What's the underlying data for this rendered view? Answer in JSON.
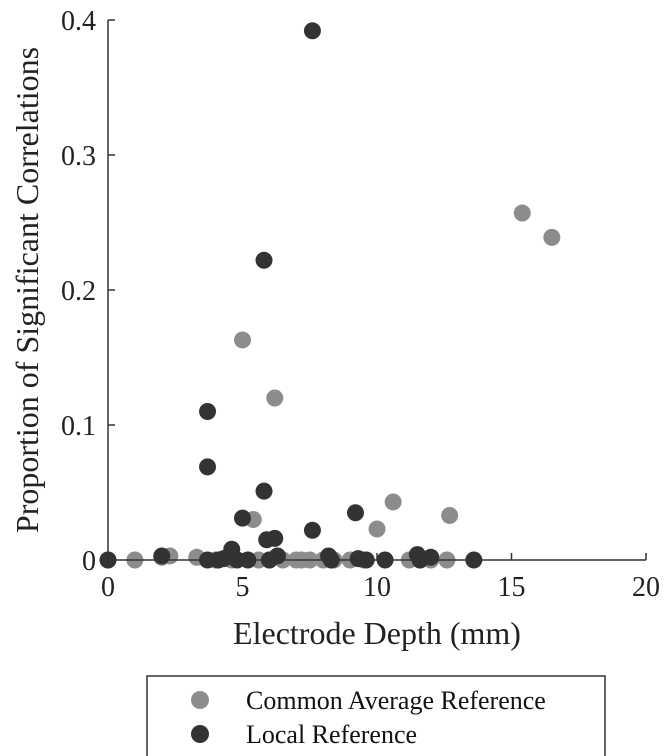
{
  "chart_data": {
    "type": "scatter",
    "xlabel": "Electrode Depth (mm)",
    "ylabel": "Proportion of Significant Correlations",
    "xlim": [
      0,
      20
    ],
    "ylim": [
      0,
      0.4
    ],
    "xticks": [
      0,
      5,
      10,
      15,
      20
    ],
    "xtick_labels": [
      "0",
      "5",
      "10",
      "15",
      "20"
    ],
    "yticks": [
      0,
      0.1,
      0.2,
      0.3,
      0.4
    ],
    "ytick_labels": [
      "0",
      "0.1",
      "0.2",
      "0.3",
      "0.4"
    ],
    "grid": false,
    "legend_position": "bottom-center",
    "series": [
      {
        "name": "Common Average Reference",
        "color": "#8c8c8c",
        "points": [
          [
            0,
            0
          ],
          [
            1,
            0
          ],
          [
            2,
            0.002
          ],
          [
            2.3,
            0.003
          ],
          [
            3.3,
            0.002
          ],
          [
            4,
            0
          ],
          [
            4.6,
            0
          ],
          [
            5,
            0.163
          ],
          [
            5.4,
            0.03
          ],
          [
            5.6,
            0
          ],
          [
            6,
            0
          ],
          [
            6.2,
            0.12
          ],
          [
            6.5,
            0
          ],
          [
            7,
            0
          ],
          [
            7.2,
            0
          ],
          [
            7.5,
            0
          ],
          [
            8,
            0
          ],
          [
            8.4,
            0
          ],
          [
            9,
            0
          ],
          [
            9.5,
            0
          ],
          [
            10,
            0.023
          ],
          [
            10.6,
            0.043
          ],
          [
            11.2,
            0
          ],
          [
            11.6,
            0
          ],
          [
            12,
            0
          ],
          [
            12.6,
            0
          ],
          [
            12.7,
            0.033
          ],
          [
            15.4,
            0.257
          ],
          [
            16.5,
            0.239
          ]
        ]
      },
      {
        "name": "Local Reference",
        "color": "#333333",
        "points": [
          [
            0,
            0
          ],
          [
            2,
            0.003
          ],
          [
            3.7,
            0.11
          ],
          [
            3.7,
            0.069
          ],
          [
            3.7,
            0
          ],
          [
            4.1,
            0
          ],
          [
            4.3,
            0.001
          ],
          [
            4.6,
            0.008
          ],
          [
            4.8,
            0
          ],
          [
            5,
            0.031
          ],
          [
            5.2,
            0
          ],
          [
            5.8,
            0.222
          ],
          [
            5.8,
            0.051
          ],
          [
            5.9,
            0.015
          ],
          [
            6,
            0
          ],
          [
            6.2,
            0.016
          ],
          [
            6.3,
            0.003
          ],
          [
            7.6,
            0.392
          ],
          [
            7.6,
            0.022
          ],
          [
            8.2,
            0.003
          ],
          [
            8.3,
            0
          ],
          [
            9.2,
            0.035
          ],
          [
            9.3,
            0.001
          ],
          [
            9.6,
            0
          ],
          [
            10.3,
            0
          ],
          [
            11.5,
            0.004
          ],
          [
            11.6,
            0
          ],
          [
            12,
            0.002
          ],
          [
            13.6,
            0
          ]
        ]
      }
    ]
  }
}
